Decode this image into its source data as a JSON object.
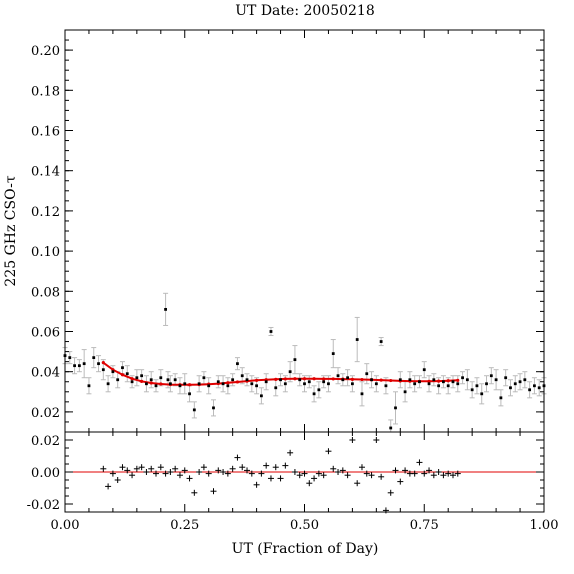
{
  "chart_data": [
    {
      "type": "scatter",
      "panel": "main",
      "title": "UT Date: 20050218",
      "xlabel": "",
      "ylabel": "225 GHz CSO-τ",
      "xlim": [
        0.0,
        1.0
      ],
      "ylim": [
        0.01,
        0.21
      ],
      "yticks": [
        "0.02",
        "0.04",
        "0.06",
        "0.08",
        "0.10",
        "0.12",
        "0.14",
        "0.16",
        "0.18",
        "0.20"
      ],
      "grid": false,
      "series": [
        {
          "style": "points-with-errorbars",
          "color": "#000000",
          "errorbar_color": "#bbbbbb",
          "x": [
            0.0,
            0.01,
            0.02,
            0.03,
            0.04,
            0.05,
            0.06,
            0.07,
            0.08,
            0.09,
            0.1,
            0.11,
            0.12,
            0.13,
            0.14,
            0.15,
            0.16,
            0.17,
            0.18,
            0.19,
            0.2,
            0.21,
            0.215,
            0.22,
            0.23,
            0.24,
            0.25,
            0.26,
            0.27,
            0.28,
            0.29,
            0.3,
            0.31,
            0.32,
            0.33,
            0.34,
            0.35,
            0.36,
            0.37,
            0.38,
            0.39,
            0.4,
            0.41,
            0.42,
            0.43,
            0.44,
            0.45,
            0.46,
            0.47,
            0.48,
            0.49,
            0.5,
            0.51,
            0.52,
            0.53,
            0.54,
            0.55,
            0.56,
            0.57,
            0.58,
            0.59,
            0.6,
            0.61,
            0.62,
            0.63,
            0.64,
            0.65,
            0.66,
            0.67,
            0.68,
            0.69,
            0.7,
            0.71,
            0.72,
            0.73,
            0.74,
            0.75,
            0.76,
            0.77,
            0.78,
            0.79,
            0.8,
            0.81,
            0.82,
            0.83,
            0.84,
            0.85,
            0.86,
            0.87,
            0.88,
            0.89,
            0.9,
            0.91,
            0.92,
            0.93,
            0.94,
            0.95,
            0.96,
            0.97,
            0.98,
            0.99,
            1.0
          ],
          "y": [
            0.048,
            0.047,
            0.043,
            0.043,
            0.044,
            0.033,
            0.047,
            0.044,
            0.041,
            0.034,
            0.04,
            0.036,
            0.042,
            0.039,
            0.035,
            0.037,
            0.038,
            0.034,
            0.036,
            0.033,
            0.037,
            0.071,
            0.036,
            0.034,
            0.036,
            0.033,
            0.034,
            0.029,
            0.021,
            0.034,
            0.037,
            0.033,
            0.022,
            0.035,
            0.034,
            0.033,
            0.036,
            0.044,
            0.038,
            0.036,
            0.034,
            0.033,
            0.028,
            0.035,
            0.06,
            0.032,
            0.036,
            0.034,
            0.04,
            0.046,
            0.036,
            0.034,
            0.035,
            0.029,
            0.031,
            0.035,
            0.034,
            0.049,
            0.038,
            0.036,
            0.037,
            0.034,
            0.056,
            0.029,
            0.039,
            0.036,
            0.034,
            0.055,
            0.033,
            0.012,
            0.022,
            0.036,
            0.03,
            0.036,
            0.034,
            0.035,
            0.041,
            0.034,
            0.036,
            0.033,
            0.035,
            0.033,
            0.035,
            0.034,
            0.037,
            0.036,
            0.031,
            0.033,
            0.029,
            0.034,
            0.038,
            0.036,
            0.027,
            0.037,
            0.032,
            0.034,
            0.035,
            0.036,
            0.031,
            0.033,
            0.032,
            0.033
          ],
          "err": [
            0.004,
            0.003,
            0.004,
            0.003,
            0.007,
            0.004,
            0.005,
            0.004,
            0.005,
            0.004,
            0.003,
            0.004,
            0.003,
            0.004,
            0.003,
            0.004,
            0.003,
            0.004,
            0.004,
            0.003,
            0.004,
            0.008,
            0.004,
            0.004,
            0.003,
            0.004,
            0.005,
            0.004,
            0.004,
            0.004,
            0.003,
            0.004,
            0.004,
            0.003,
            0.004,
            0.004,
            0.003,
            0.003,
            0.004,
            0.003,
            0.004,
            0.004,
            0.004,
            0.004,
            0.002,
            0.004,
            0.003,
            0.004,
            0.005,
            0.007,
            0.003,
            0.004,
            0.003,
            0.004,
            0.004,
            0.003,
            0.004,
            0.007,
            0.004,
            0.003,
            0.004,
            0.004,
            0.011,
            0.006,
            0.005,
            0.004,
            0.004,
            0.002,
            0.004,
            0.004,
            0.008,
            0.004,
            0.005,
            0.004,
            0.004,
            0.003,
            0.004,
            0.004,
            0.003,
            0.004,
            0.003,
            0.004,
            0.003,
            0.004,
            0.003,
            0.005,
            0.004,
            0.004,
            0.005,
            0.004,
            0.004,
            0.005,
            0.004,
            0.004,
            0.004,
            0.004,
            0.004,
            0.004,
            0.004,
            0.004,
            0.004,
            0.004
          ]
        },
        {
          "style": "fit-line",
          "color": "#e00000",
          "x": [
            0.08,
            0.1,
            0.12,
            0.14,
            0.16,
            0.18,
            0.2,
            0.22,
            0.24,
            0.26,
            0.28,
            0.3,
            0.32,
            0.34,
            0.36,
            0.38,
            0.4,
            0.42,
            0.44,
            0.46,
            0.48,
            0.5,
            0.52,
            0.54,
            0.56,
            0.58,
            0.6,
            0.62,
            0.64,
            0.66,
            0.68,
            0.7,
            0.72,
            0.74,
            0.76,
            0.78,
            0.8,
            0.82
          ],
          "y": [
            0.0445,
            0.041,
            0.0385,
            0.0365,
            0.0352,
            0.0344,
            0.0339,
            0.0336,
            0.0335,
            0.0335,
            0.0336,
            0.0338,
            0.0341,
            0.0345,
            0.0349,
            0.0353,
            0.0357,
            0.036,
            0.0362,
            0.0364,
            0.0365,
            0.0365,
            0.0365,
            0.0364,
            0.0364,
            0.0363,
            0.0362,
            0.0361,
            0.036,
            0.0358,
            0.0356,
            0.0354,
            0.0353,
            0.0352,
            0.0352,
            0.0353,
            0.0355,
            0.0357
          ]
        }
      ]
    },
    {
      "type": "scatter",
      "panel": "residuals",
      "xlabel": "UT (Fraction of Day)",
      "ylabel": "",
      "xlim": [
        0.0,
        1.0
      ],
      "ylim": [
        -0.025,
        0.025
      ],
      "xticks": [
        "0.00",
        "0.25",
        "0.50",
        "0.75",
        "1.00"
      ],
      "yticks": [
        "-0.02",
        "0.00",
        "0.02"
      ],
      "grid": false,
      "series": [
        {
          "style": "plus-markers",
          "color": "#000000",
          "x": [
            0.08,
            0.09,
            0.1,
            0.11,
            0.12,
            0.13,
            0.14,
            0.15,
            0.16,
            0.17,
            0.18,
            0.19,
            0.2,
            0.21,
            0.22,
            0.23,
            0.24,
            0.25,
            0.26,
            0.27,
            0.28,
            0.29,
            0.3,
            0.31,
            0.32,
            0.33,
            0.34,
            0.35,
            0.36,
            0.37,
            0.38,
            0.39,
            0.4,
            0.41,
            0.42,
            0.43,
            0.44,
            0.45,
            0.46,
            0.47,
            0.48,
            0.49,
            0.5,
            0.51,
            0.52,
            0.53,
            0.54,
            0.55,
            0.56,
            0.57,
            0.58,
            0.59,
            0.6,
            0.61,
            0.62,
            0.63,
            0.64,
            0.65,
            0.66,
            0.67,
            0.68,
            0.69,
            0.7,
            0.71,
            0.72,
            0.73,
            0.74,
            0.75,
            0.76,
            0.77,
            0.78,
            0.79,
            0.8,
            0.81,
            0.82
          ],
          "y": [
            0.002,
            -0.009,
            -0.001,
            -0.005,
            0.003,
            0.001,
            -0.002,
            0.002,
            0.003,
            0.0,
            0.002,
            -0.001,
            0.003,
            -0.001,
            0.0,
            0.002,
            -0.002,
            0.001,
            -0.004,
            -0.013,
            0.0,
            0.003,
            -0.001,
            -0.012,
            0.001,
            0.0,
            -0.001,
            0.002,
            0.009,
            0.003,
            0.001,
            -0.001,
            -0.008,
            -0.001,
            0.004,
            -0.004,
            0.003,
            -0.004,
            0.004,
            0.012,
            0.0,
            -0.002,
            -0.001,
            -0.007,
            -0.004,
            -0.001,
            -0.002,
            0.013,
            0.002,
            0.0,
            0.001,
            -0.002,
            0.02,
            -0.007,
            0.003,
            -0.001,
            -0.002,
            0.02,
            -0.003,
            -0.024,
            -0.013,
            0.001,
            -0.006,
            0.001,
            -0.001,
            -0.001,
            0.006,
            -0.001,
            0.001,
            -0.002,
            0.0,
            -0.002,
            -0.001,
            -0.002,
            -0.001
          ]
        },
        {
          "style": "zero-line",
          "color": "#e00000",
          "x": [
            0.0,
            1.0
          ],
          "y": [
            0.0,
            0.0
          ]
        }
      ]
    }
  ]
}
